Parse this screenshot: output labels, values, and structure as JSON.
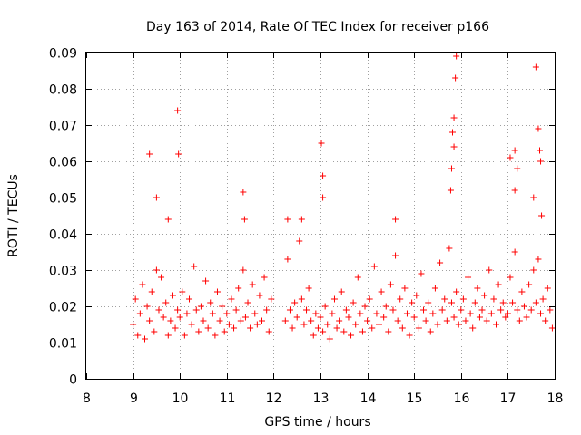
{
  "chart_data": {
    "type": "scatter",
    "title": "Day 163 of 2014, Rate Of TEC Index for receiver p166",
    "xlabel": "GPS time / hours",
    "ylabel": "ROTI / TECUs",
    "xlim": [
      8,
      18
    ],
    "ylim": [
      0,
      0.09
    ],
    "grid": true,
    "marker": "+",
    "color": "#ff0000",
    "xticks": [
      "8",
      "9",
      "10",
      "11",
      "12",
      "13",
      "14",
      "15",
      "16",
      "17",
      "18"
    ],
    "yticks": [
      "0",
      "0.01",
      "0.02",
      "0.03",
      "0.04",
      "0.05",
      "0.06",
      "0.07",
      "0.08",
      "0.09"
    ],
    "series": [
      {
        "name": "p166",
        "x": [
          9.0,
          9.05,
          9.1,
          9.15,
          9.2,
          9.25,
          9.3,
          9.35,
          9.4,
          9.45,
          9.5,
          9.55,
          9.6,
          9.65,
          9.7,
          9.75,
          9.8,
          9.85,
          9.9,
          9.95,
          10.0,
          10.05,
          10.1,
          10.15,
          10.2,
          10.25,
          10.3,
          10.35,
          10.4,
          10.45,
          10.5,
          10.55,
          10.6,
          10.65,
          10.7,
          10.75,
          10.8,
          10.85,
          10.9,
          10.95,
          11.0,
          11.05,
          11.1,
          11.15,
          11.2,
          11.25,
          11.3,
          11.35,
          11.4,
          11.45,
          11.5,
          11.55,
          11.6,
          11.65,
          11.7,
          11.75,
          11.8,
          11.85,
          11.9,
          11.95,
          12.25,
          12.3,
          12.35,
          12.4,
          12.45,
          12.5,
          12.55,
          12.6,
          12.65,
          12.7,
          12.75,
          12.8,
          12.85,
          12.9,
          12.95,
          13.0,
          13.05,
          13.1,
          13.15,
          13.2,
          13.25,
          13.3,
          13.35,
          13.4,
          13.45,
          13.5,
          13.55,
          13.6,
          13.65,
          13.7,
          13.75,
          13.8,
          13.85,
          13.9,
          13.95,
          14.0,
          14.05,
          14.1,
          14.15,
          14.2,
          14.25,
          14.3,
          14.35,
          14.4,
          14.45,
          14.5,
          14.55,
          14.6,
          14.65,
          14.7,
          14.75,
          14.8,
          14.85,
          14.9,
          14.95,
          15.0,
          15.05,
          15.1,
          15.15,
          15.2,
          15.25,
          15.3,
          15.35,
          15.4,
          15.45,
          15.5,
          15.55,
          15.6,
          15.65,
          15.7,
          15.75,
          15.8,
          15.85,
          15.9,
          15.95,
          16.0,
          16.05,
          16.1,
          16.15,
          16.2,
          16.25,
          16.3,
          16.35,
          16.4,
          16.45,
          16.5,
          16.55,
          16.6,
          16.65,
          16.7,
          16.75,
          16.8,
          16.85,
          16.9,
          16.95,
          17.0,
          17.05,
          17.1,
          17.15,
          17.2,
          17.25,
          17.3,
          17.35,
          17.4,
          17.45,
          17.5,
          17.55,
          17.6,
          17.65,
          17.7,
          17.75,
          17.8,
          17.85,
          17.9,
          17.95,
          9.35,
          9.5,
          9.75,
          9.95,
          9.97,
          11.35,
          11.38,
          12.3,
          12.6,
          13.02,
          13.05,
          13.05,
          14.6,
          15.8,
          15.85,
          15.9,
          15.88,
          15.85,
          15.82,
          15.78,
          17.05,
          17.15,
          17.2,
          17.15,
          17.6,
          17.65,
          17.68,
          17.7,
          17.72,
          17.55
        ],
        "y": [
          0.015,
          0.022,
          0.012,
          0.018,
          0.026,
          0.011,
          0.02,
          0.016,
          0.024,
          0.013,
          0.03,
          0.019,
          0.028,
          0.017,
          0.021,
          0.012,
          0.016,
          0.023,
          0.014,
          0.019,
          0.017,
          0.024,
          0.012,
          0.018,
          0.022,
          0.015,
          0.031,
          0.019,
          0.013,
          0.02,
          0.016,
          0.027,
          0.014,
          0.021,
          0.018,
          0.012,
          0.024,
          0.016,
          0.02,
          0.013,
          0.018,
          0.015,
          0.022,
          0.014,
          0.019,
          0.025,
          0.016,
          0.03,
          0.017,
          0.021,
          0.014,
          0.026,
          0.018,
          0.015,
          0.023,
          0.016,
          0.028,
          0.019,
          0.013,
          0.022,
          0.016,
          0.033,
          0.019,
          0.014,
          0.021,
          0.017,
          0.038,
          0.022,
          0.015,
          0.019,
          0.025,
          0.016,
          0.012,
          0.018,
          0.014,
          0.017,
          0.013,
          0.02,
          0.015,
          0.011,
          0.018,
          0.022,
          0.014,
          0.016,
          0.024,
          0.013,
          0.019,
          0.017,
          0.012,
          0.021,
          0.015,
          0.028,
          0.018,
          0.013,
          0.02,
          0.016,
          0.022,
          0.014,
          0.031,
          0.018,
          0.015,
          0.024,
          0.017,
          0.02,
          0.013,
          0.026,
          0.019,
          0.034,
          0.016,
          0.022,
          0.014,
          0.025,
          0.018,
          0.012,
          0.021,
          0.017,
          0.023,
          0.014,
          0.029,
          0.019,
          0.016,
          0.021,
          0.013,
          0.018,
          0.025,
          0.015,
          0.032,
          0.019,
          0.022,
          0.016,
          0.036,
          0.021,
          0.017,
          0.024,
          0.015,
          0.019,
          0.022,
          0.016,
          0.028,
          0.018,
          0.014,
          0.021,
          0.025,
          0.017,
          0.019,
          0.023,
          0.016,
          0.03,
          0.018,
          0.022,
          0.015,
          0.026,
          0.019,
          0.021,
          0.017,
          0.018,
          0.028,
          0.021,
          0.035,
          0.019,
          0.016,
          0.024,
          0.02,
          0.017,
          0.026,
          0.019,
          0.03,
          0.021,
          0.033,
          0.018,
          0.022,
          0.016,
          0.025,
          0.019,
          0.014,
          0.062,
          0.05,
          0.044,
          0.074,
          0.062,
          0.0515,
          0.044,
          0.044,
          0.044,
          0.065,
          0.056,
          0.05,
          0.044,
          0.058,
          0.064,
          0.089,
          0.083,
          0.072,
          0.068,
          0.052,
          0.061,
          0.063,
          0.058,
          0.052,
          0.086,
          0.069,
          0.063,
          0.06,
          0.045,
          0.05
        ]
      }
    ]
  }
}
